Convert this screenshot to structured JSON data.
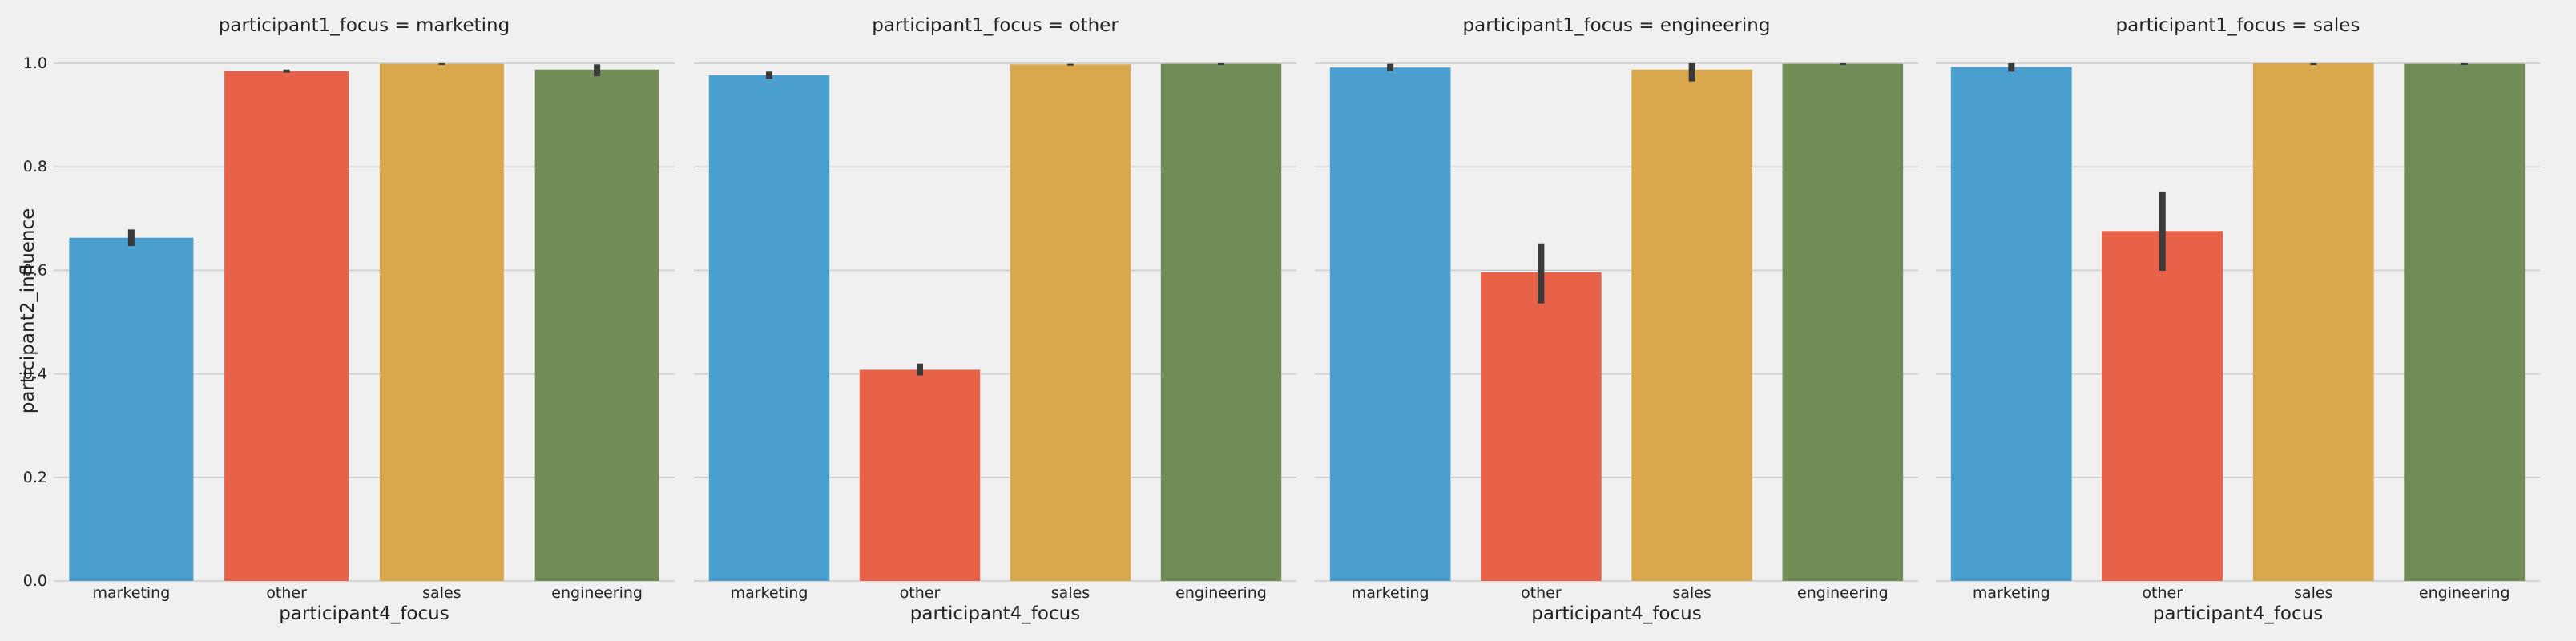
{
  "chart_data": {
    "type": "bar",
    "facet_variable": "participant1_focus",
    "xlabel": "participant4_focus",
    "ylabel": "participant2_influence",
    "ylim": [
      0,
      1.0
    ],
    "yticks": [
      "0.0",
      "0.2",
      "0.4",
      "0.6",
      "0.8",
      "1.0"
    ],
    "grid": true,
    "categories": [
      "marketing",
      "other",
      "sales",
      "engineering"
    ],
    "colors": [
      "#4a9fcf",
      "#e8624a",
      "#d9a84c",
      "#728c55"
    ],
    "error_color": "#3a3a3a",
    "facets": [
      {
        "title": "participant1_focus = marketing",
        "values": [
          0.663,
          0.985,
          0.999,
          0.988
        ],
        "err_low": [
          0.647,
          0.982,
          0.997,
          0.975
        ],
        "err_high": [
          0.679,
          0.988,
          1.0,
          0.998
        ]
      },
      {
        "title": "participant1_focus = other",
        "values": [
          0.977,
          0.408,
          0.998,
          0.999
        ],
        "err_low": [
          0.97,
          0.397,
          0.996,
          0.998
        ],
        "err_high": [
          0.984,
          0.42,
          0.999,
          1.0
        ]
      },
      {
        "title": "participant1_focus = engineering",
        "values": [
          0.992,
          0.596,
          0.988,
          0.999
        ],
        "err_low": [
          0.985,
          0.536,
          0.965,
          0.998
        ],
        "err_high": [
          0.999,
          0.652,
          1.0,
          1.0
        ]
      },
      {
        "title": "participant1_focus = sales",
        "values": [
          0.993,
          0.676,
          1.0,
          0.999
        ],
        "err_low": [
          0.984,
          0.599,
          1.0,
          0.998
        ],
        "err_high": [
          1.0,
          0.751,
          1.0,
          1.0
        ]
      }
    ]
  }
}
